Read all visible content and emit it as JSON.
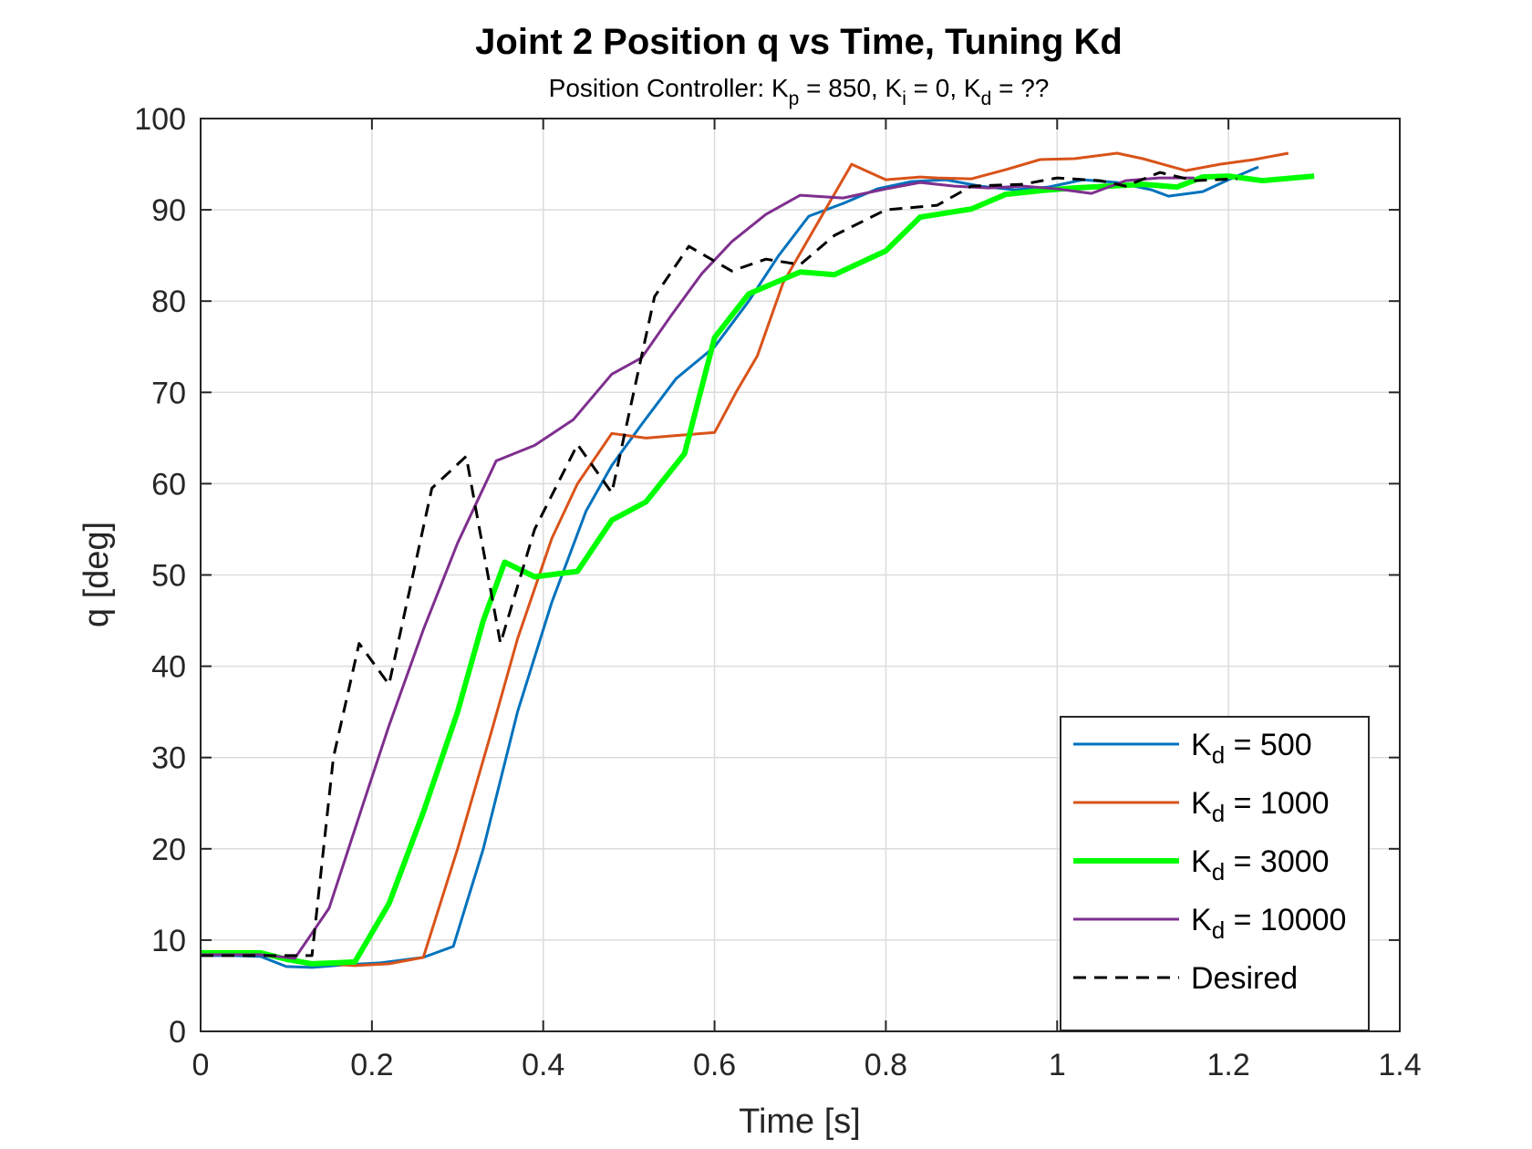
{
  "chart_data": {
    "type": "line",
    "title": "Joint 2 Position q vs Time, Tuning Kd",
    "subtitle": {
      "parts": [
        {
          "text": "Position Controller: K"
        },
        {
          "text": "p",
          "sub": true
        },
        {
          "text": " = 850, K"
        },
        {
          "text": "i",
          "sub": true
        },
        {
          "text": " = 0, K"
        },
        {
          "text": "d",
          "sub": true
        },
        {
          "text": " = ??"
        }
      ]
    },
    "xlabel": "Time [s]",
    "ylabel": "q [deg]",
    "xlim": [
      0,
      1.4
    ],
    "ylim": [
      0,
      100
    ],
    "xticks": [
      0,
      0.2,
      0.4,
      0.6,
      0.8,
      1,
      1.2,
      1.4
    ],
    "xtick_labels": [
      "0",
      "0.2",
      "0.4",
      "0.6",
      "0.8",
      "1",
      "1.2",
      "1.4"
    ],
    "yticks": [
      0,
      10,
      20,
      30,
      40,
      50,
      60,
      70,
      80,
      90,
      100
    ],
    "ytick_labels": [
      "0",
      "10",
      "20",
      "30",
      "40",
      "50",
      "60",
      "70",
      "80",
      "90",
      "100"
    ],
    "grid": true,
    "legend_position": "bottom-right",
    "series": [
      {
        "name": "K_d = 500",
        "legend_parts": [
          {
            "text": "K"
          },
          {
            "text": "d",
            "sub": true
          },
          {
            "text": " = 500"
          }
        ],
        "color": "#0072BD",
        "dashed": false,
        "bold": false,
        "x": [
          0,
          0.035,
          0.07,
          0.1,
          0.13,
          0.17,
          0.21,
          0.26,
          0.295,
          0.33,
          0.37,
          0.41,
          0.45,
          0.48,
          0.515,
          0.555,
          0.6,
          0.64,
          0.675,
          0.71,
          0.75,
          0.79,
          0.83,
          0.87,
          0.91,
          0.95,
          0.99,
          1.03,
          1.07,
          1.11,
          1.13,
          1.17,
          1.2,
          1.235
        ],
        "y": [
          8.3,
          8.3,
          8.2,
          7.1,
          7.0,
          7.3,
          7.5,
          8.1,
          9.3,
          20,
          35,
          47,
          57,
          62,
          66.5,
          71.5,
          75,
          80,
          85,
          89.3,
          90.7,
          92.3,
          93.1,
          93.3,
          92.6,
          92.2,
          92.5,
          93.3,
          93.0,
          92.2,
          91.5,
          92.0,
          93.3,
          94.7
        ]
      },
      {
        "name": "K_d = 1000",
        "legend_parts": [
          {
            "text": "K"
          },
          {
            "text": "d",
            "sub": true
          },
          {
            "text": " = 1000"
          }
        ],
        "color": "#D95319",
        "dashed": false,
        "bold": false,
        "x": [
          0,
          0.035,
          0.07,
          0.1,
          0.13,
          0.18,
          0.22,
          0.26,
          0.3,
          0.34,
          0.37,
          0.41,
          0.44,
          0.48,
          0.52,
          0.56,
          0.6,
          0.625,
          0.65,
          0.68,
          0.72,
          0.76,
          0.8,
          0.84,
          0.86,
          0.9,
          0.94,
          0.98,
          1.02,
          1.07,
          1.1,
          1.15,
          1.19,
          1.23,
          1.27
        ],
        "y": [
          8.5,
          8.5,
          8.5,
          7.8,
          7.5,
          7.2,
          7.4,
          8.1,
          20,
          33,
          43,
          54,
          60,
          65.5,
          65.0,
          65.3,
          65.6,
          70,
          74,
          82,
          88.5,
          95,
          93.3,
          93.6,
          93.5,
          93.4,
          94.4,
          95.5,
          95.6,
          96.2,
          95.6,
          94.3,
          95.0,
          95.5,
          96.2
        ]
      },
      {
        "name": "K_d = 3000",
        "legend_parts": [
          {
            "text": "K"
          },
          {
            "text": "d",
            "sub": true
          },
          {
            "text": " = 3000"
          }
        ],
        "color": "#00FF00",
        "dashed": false,
        "bold": true,
        "x": [
          0,
          0.035,
          0.07,
          0.1,
          0.13,
          0.18,
          0.22,
          0.26,
          0.3,
          0.33,
          0.355,
          0.39,
          0.44,
          0.48,
          0.52,
          0.565,
          0.6,
          0.64,
          0.7,
          0.74,
          0.8,
          0.84,
          0.9,
          0.94,
          0.98,
          1.02,
          1.06,
          1.1,
          1.14,
          1.17,
          1.2,
          1.24,
          1.3
        ],
        "y": [
          8.6,
          8.6,
          8.6,
          7.9,
          7.4,
          7.6,
          14,
          24,
          35,
          45,
          51.4,
          49.8,
          50.4,
          56,
          58,
          63.3,
          76,
          80.8,
          83.2,
          82.9,
          85.5,
          89.2,
          90.1,
          91.7,
          92.1,
          92.4,
          92.6,
          92.8,
          92.5,
          93.6,
          93.7,
          93.2,
          93.7
        ]
      },
      {
        "name": "K_d = 10000",
        "legend_parts": [
          {
            "text": "K"
          },
          {
            "text": "d",
            "sub": true
          },
          {
            "text": " = 10000"
          }
        ],
        "color": "#7E2F8E",
        "dashed": false,
        "bold": false,
        "x": [
          0,
          0.035,
          0.07,
          0.11,
          0.15,
          0.19,
          0.22,
          0.26,
          0.3,
          0.345,
          0.39,
          0.435,
          0.48,
          0.515,
          0.55,
          0.585,
          0.62,
          0.66,
          0.7,
          0.75,
          0.8,
          0.84,
          0.88,
          0.92,
          0.96,
          1.0,
          1.04,
          1.08,
          1.12,
          1.16
        ],
        "y": [
          8.4,
          8.4,
          8.4,
          8.0,
          13.5,
          25,
          33.5,
          44,
          53.5,
          62.5,
          64.2,
          67,
          72,
          73.8,
          78.5,
          83,
          86.5,
          89.5,
          91.6,
          91.3,
          92.3,
          93.0,
          92.6,
          92.4,
          92.6,
          92.3,
          91.8,
          93.2,
          93.5,
          93.5
        ]
      },
      {
        "name": "Desired",
        "legend_parts": [
          {
            "text": "Desired"
          }
        ],
        "color": "#000000",
        "dashed": true,
        "bold": false,
        "x": [
          0,
          0.035,
          0.07,
          0.1,
          0.13,
          0.155,
          0.185,
          0.22,
          0.27,
          0.31,
          0.35,
          0.39,
          0.44,
          0.48,
          0.53,
          0.57,
          0.62,
          0.66,
          0.7,
          0.74,
          0.8,
          0.86,
          0.9,
          0.96,
          1.0,
          1.05,
          1.08,
          1.12,
          1.16,
          1.21
        ],
        "y": [
          8.3,
          8.3,
          8.3,
          8.3,
          8.3,
          30,
          42.5,
          38,
          59.5,
          63,
          42.5,
          55,
          64.3,
          59,
          80.5,
          86,
          83.3,
          84.6,
          84.0,
          87.2,
          90.0,
          90.5,
          92.6,
          92.8,
          93.5,
          93.2,
          92.6,
          94.1,
          93.2,
          93.4
        ]
      }
    ]
  }
}
